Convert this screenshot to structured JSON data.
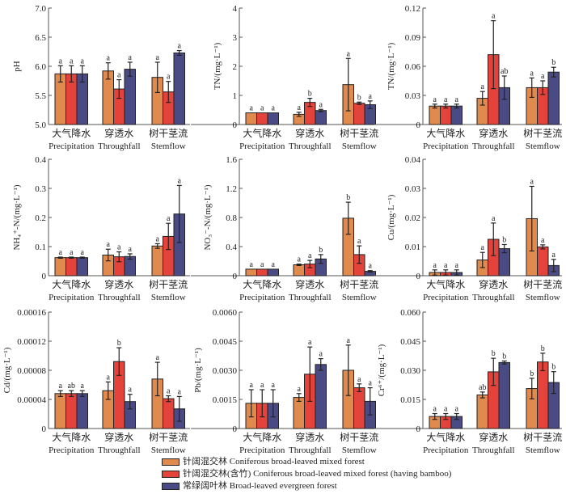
{
  "colors": {
    "series": [
      "#E08A4E",
      "#E3433A",
      "#4A4A84"
    ],
    "axis": "#555555",
    "errorbar": "#222222"
  },
  "legend": [
    {
      "label": "针阔混交林 Coniferous broad-leaved mixed forest"
    },
    {
      "label": "针阔混交林(含竹) Coniferous broad-leaved mixed forest (having bamboo)"
    },
    {
      "label": "常绿阔叶林 Broad-leaved evergreen forest"
    }
  ],
  "chart_data": [
    {
      "type": "bar",
      "title": "",
      "ylabel": "pH",
      "categories_cn": [
        "大气降水",
        "穿透水",
        "树干茎流"
      ],
      "categories": [
        "Precipitation",
        "Throughfall",
        "Stemflow"
      ],
      "ylim": [
        5.0,
        7.0
      ],
      "yticks": [
        "5.0",
        "5.5",
        "6.0",
        "6.5",
        "7.0"
      ],
      "ytick_values": [
        5.0,
        5.5,
        6.0,
        6.5,
        7.0
      ],
      "series": [
        {
          "name": "Coniferous broad-leaved mixed forest",
          "values": [
            5.87,
            5.92,
            5.81
          ],
          "errors": [
            0.14,
            0.14,
            0.26
          ],
          "letters": [
            "a",
            "a",
            "a"
          ]
        },
        {
          "name": "Coniferous broad-leaved mixed forest (having bamboo)",
          "values": [
            5.87,
            5.61,
            5.56
          ],
          "errors": [
            0.14,
            0.16,
            0.18
          ],
          "letters": [
            "a",
            "a",
            "a"
          ]
        },
        {
          "name": "Broad-leaved evergreen forest",
          "values": [
            5.87,
            5.95,
            6.23
          ],
          "errors": [
            0.14,
            0.12,
            0.04
          ],
          "letters": [
            "a",
            "a",
            "a"
          ]
        }
      ]
    },
    {
      "type": "bar",
      "title": "",
      "ylabel": "TN/(mg·L⁻¹)",
      "categories_cn": [
        "大气降水",
        "穿透水",
        "树干茎流"
      ],
      "categories": [
        "Precipitation",
        "Throughfall",
        "Stemflow"
      ],
      "ylim": [
        0,
        4
      ],
      "yticks": [
        "0",
        "1",
        "2",
        "3",
        "4"
      ],
      "ytick_values": [
        0,
        1,
        2,
        3,
        4
      ],
      "series": [
        {
          "name": "Coniferous broad-leaved mixed forest",
          "values": [
            0.4,
            0.35,
            1.37
          ],
          "errors": [
            0.0,
            0.07,
            0.9
          ],
          "letters": [
            "a",
            "a",
            "a"
          ]
        },
        {
          "name": "Coniferous broad-leaved mixed forest (having bamboo)",
          "values": [
            0.4,
            0.76,
            0.73
          ],
          "errors": [
            0.0,
            0.14,
            0.04
          ],
          "letters": [
            "a",
            "b",
            "b"
          ]
        },
        {
          "name": "Broad-leaved evergreen forest",
          "values": [
            0.4,
            0.48,
            0.68
          ],
          "errors": [
            0.0,
            0.04,
            0.13
          ],
          "letters": [
            "a",
            "a",
            "a"
          ]
        }
      ]
    },
    {
      "type": "bar",
      "title": "",
      "ylabel": "TN/(mg·L⁻¹)",
      "categories_cn": [
        "大气降水",
        "穿透水",
        "树干茎流"
      ],
      "categories": [
        "Precipitation",
        "Throughfall",
        "Stemflow"
      ],
      "ylim": [
        0,
        0.12
      ],
      "yticks": [
        "0",
        "0.03",
        "0.06",
        "0.09",
        "0.12"
      ],
      "ytick_values": [
        0,
        0.03,
        0.06,
        0.09,
        0.12
      ],
      "series": [
        {
          "name": "Coniferous broad-leaved mixed forest",
          "values": [
            0.019,
            0.027,
            0.038
          ],
          "errors": [
            0.002,
            0.007,
            0.01
          ],
          "letters": [
            "a",
            "a",
            "a"
          ]
        },
        {
          "name": "Coniferous broad-leaved mixed forest (having bamboo)",
          "values": [
            0.019,
            0.072,
            0.038
          ],
          "errors": [
            0.002,
            0.035,
            0.007
          ],
          "letters": [
            "a",
            "a",
            "a"
          ]
        },
        {
          "name": "Broad-leaved evergreen forest",
          "values": [
            0.019,
            0.038,
            0.054
          ],
          "errors": [
            0.002,
            0.012,
            0.005
          ],
          "letters": [
            "a",
            "ab",
            "b"
          ]
        }
      ]
    },
    {
      "type": "bar",
      "title": "",
      "ylabel": "NH₄⁺-N/(mg·L⁻¹)",
      "categories_cn": [
        "大气降水",
        "穿透水",
        "树干茎流"
      ],
      "categories": [
        "Precipitation",
        "Throughfall",
        "Stemflow"
      ],
      "ylim": [
        0,
        0.4
      ],
      "yticks": [
        "0",
        "0.1",
        "0.2",
        "0.3",
        "0.4"
      ],
      "ytick_values": [
        0,
        0.1,
        0.2,
        0.3,
        0.4
      ],
      "series": [
        {
          "name": "Coniferous broad-leaved mixed forest",
          "values": [
            0.062,
            0.071,
            0.102
          ],
          "errors": [
            0.002,
            0.02,
            0.008
          ],
          "letters": [
            "a",
            "a",
            "a"
          ]
        },
        {
          "name": "Coniferous broad-leaved mixed forest (having bamboo)",
          "values": [
            0.062,
            0.065,
            0.135
          ],
          "errors": [
            0.002,
            0.017,
            0.045
          ],
          "letters": [
            "a",
            "a",
            "a"
          ]
        },
        {
          "name": "Broad-leaved evergreen forest",
          "values": [
            0.062,
            0.066,
            0.212
          ],
          "errors": [
            0.002,
            0.009,
            0.098
          ],
          "letters": [
            "a",
            "a",
            "a"
          ]
        }
      ]
    },
    {
      "type": "bar",
      "title": "",
      "ylabel": "NO₃⁻-N/(mg·L⁻¹)",
      "categories_cn": [
        "大气降水",
        "穿透水",
        "树干茎流"
      ],
      "categories": [
        "Precipitation",
        "Throughfall",
        "Stemflow"
      ],
      "ylim": [
        0,
        1.6
      ],
      "yticks": [
        "0",
        "0.4",
        "0.8",
        "1.2",
        "1.6"
      ],
      "ytick_values": [
        0,
        0.4,
        0.8,
        1.2,
        1.6
      ],
      "series": [
        {
          "name": "Coniferous broad-leaved mixed forest",
          "values": [
            0.09,
            0.15,
            0.79
          ],
          "errors": [
            0.0,
            0.01,
            0.22
          ],
          "letters": [
            "a",
            "a",
            "b"
          ]
        },
        {
          "name": "Coniferous broad-leaved mixed forest (having bamboo)",
          "values": [
            0.09,
            0.16,
            0.29
          ],
          "errors": [
            0.0,
            0.05,
            0.12
          ],
          "letters": [
            "a",
            "a",
            "a"
          ]
        },
        {
          "name": "Broad-leaved evergreen forest",
          "values": [
            0.09,
            0.23,
            0.06
          ],
          "errors": [
            0.0,
            0.06,
            0.01
          ],
          "letters": [
            "a",
            "b",
            "a"
          ]
        }
      ]
    },
    {
      "type": "bar",
      "title": "",
      "ylabel": "Cu/(mg·L⁻¹)",
      "categories_cn": [
        "大气降水",
        "穿透水",
        "树干茎流"
      ],
      "categories": [
        "Precipitation",
        "Throughfall",
        "Stemflow"
      ],
      "ylim": [
        0,
        0.04
      ],
      "yticks": [
        "0",
        "0.01",
        "0.02",
        "0.03",
        "0.04"
      ],
      "ytick_values": [
        0,
        0.01,
        0.02,
        0.03,
        0.04
      ],
      "series": [
        {
          "name": "Coniferous broad-leaved mixed forest",
          "values": [
            0.0011,
            0.0054,
            0.0196
          ],
          "errors": [
            0.0009,
            0.0026,
            0.0111
          ],
          "letters": [
            "a",
            "a",
            "a"
          ]
        },
        {
          "name": "Coniferous broad-leaved mixed forest (having bamboo)",
          "values": [
            0.0011,
            0.0125,
            0.0099
          ],
          "errors": [
            0.0009,
            0.0056,
            0.0007
          ],
          "letters": [
            "a",
            "a",
            "a"
          ]
        },
        {
          "name": "Broad-leaved evergreen forest",
          "values": [
            0.0011,
            0.0093,
            0.0035
          ],
          "errors": [
            0.0009,
            0.0014,
            0.0021
          ],
          "letters": [
            "a",
            "b",
            "a"
          ]
        }
      ]
    },
    {
      "type": "bar",
      "title": "",
      "ylabel": "Cd/(mg·L⁻¹)",
      "categories_cn": [
        "大气降水",
        "穿透水",
        "树干茎流"
      ],
      "categories": [
        "Precipitation",
        "Throughfall",
        "Stemflow"
      ],
      "ylim": [
        0,
        0.00016
      ],
      "yticks": [
        "0",
        "0.00004",
        "0.00008",
        "0.00012",
        "0.00016"
      ],
      "ytick_values": [
        0,
        4e-05,
        8e-05,
        0.00012,
        0.00016
      ],
      "series": [
        {
          "name": "Coniferous broad-leaved mixed forest",
          "values": [
            4.8e-05,
            5.2e-05,
            6.8e-05
          ],
          "errors": [
            4e-06,
            1.2e-05,
            2.3e-05
          ],
          "letters": [
            "a",
            "a",
            "a"
          ]
        },
        {
          "name": "Coniferous broad-leaved mixed forest (having bamboo)",
          "values": [
            4.8e-05,
            9.2e-05,
            4.1e-05
          ],
          "errors": [
            4e-06,
            1.9e-05,
            4e-06
          ],
          "letters": [
            "ab",
            "b",
            "a"
          ]
        },
        {
          "name": "Broad-leaved evergreen forest",
          "values": [
            4.8e-05,
            3.7e-05,
            2.7e-05
          ],
          "errors": [
            4e-06,
            1e-05,
            1.7e-05
          ],
          "letters": [
            "a",
            "a",
            "a"
          ]
        }
      ]
    },
    {
      "type": "bar",
      "title": "",
      "ylabel": "Pb/(mg·L⁻¹)",
      "categories_cn": [
        "大气降水",
        "穿透水",
        "树干茎流"
      ],
      "categories": [
        "Precipitation",
        "Throughfall",
        "Stemflow"
      ],
      "ylim": [
        0,
        0.006
      ],
      "yticks": [
        "0",
        "0.0015",
        "0.0030",
        "0.0045",
        "0.0060"
      ],
      "ytick_values": [
        0,
        0.0015,
        0.003,
        0.0045,
        0.006
      ],
      "series": [
        {
          "name": "Coniferous broad-leaved mixed forest",
          "values": [
            0.0013,
            0.0016,
            0.003
          ],
          "errors": [
            0.0007,
            0.0002,
            0.0013
          ],
          "letters": [
            "a",
            "a",
            "a"
          ]
        },
        {
          "name": "Coniferous broad-leaved mixed forest (having bamboo)",
          "values": [
            0.0013,
            0.0028,
            0.0021
          ],
          "errors": [
            0.0007,
            0.0014,
            0.0002
          ],
          "letters": [
            "a",
            "a",
            "a"
          ]
        },
        {
          "name": "Broad-leaved evergreen forest",
          "values": [
            0.0013,
            0.0033,
            0.0014
          ],
          "errors": [
            0.0007,
            0.0003,
            0.0007
          ],
          "letters": [
            "a",
            "a",
            "a"
          ]
        }
      ]
    },
    {
      "type": "bar",
      "title": "",
      "ylabel": "Cr⁶⁺/(mg·L⁻¹)",
      "categories_cn": [
        "大气降水",
        "穿透水",
        "树干茎流"
      ],
      "categories": [
        "Precipitation",
        "Throughfall",
        "Stemflow"
      ],
      "ylim": [
        0,
        0.06
      ],
      "yticks": [
        "0",
        "0.015",
        "0.030",
        "0.045",
        "0.060"
      ],
      "ytick_values": [
        0,
        0.015,
        0.03,
        0.045,
        0.06
      ],
      "series": [
        {
          "name": "Coniferous broad-leaved mixed forest",
          "values": [
            0.0062,
            0.0173,
            0.0206
          ],
          "errors": [
            0.0015,
            0.0015,
            0.0053
          ],
          "letters": [
            "a",
            "ab",
            "b"
          ]
        },
        {
          "name": "Coniferous broad-leaved mixed forest (having bamboo)",
          "values": [
            0.0062,
            0.0292,
            0.0343
          ],
          "errors": [
            0.0015,
            0.007,
            0.0045
          ],
          "letters": [
            "a",
            "b",
            "b"
          ]
        },
        {
          "name": "Broad-leaved evergreen forest",
          "values": [
            0.0062,
            0.034,
            0.0237
          ],
          "errors": [
            0.0015,
            0.0008,
            0.0056
          ],
          "letters": [
            "a",
            "b",
            "b"
          ]
        }
      ]
    }
  ]
}
